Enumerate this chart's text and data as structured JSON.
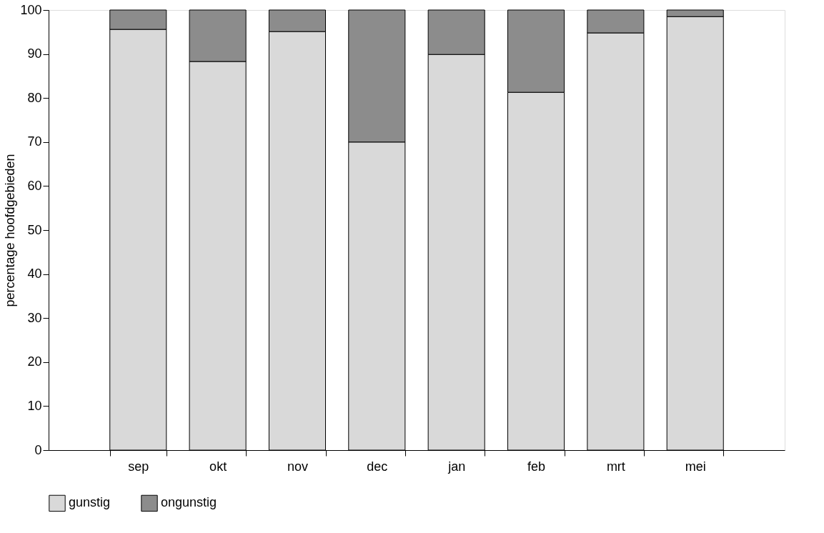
{
  "chart_data": {
    "type": "bar",
    "stacked": true,
    "ylabel": "percentage hoofdgebieden",
    "categories": [
      "sep",
      "okt",
      "nov",
      "dec",
      "jan",
      "feb",
      "mrt",
      "mei"
    ],
    "series": [
      {
        "name": "gunstig",
        "color": "#d9d9d9",
        "values": [
          95.6,
          88.3,
          95.1,
          70.0,
          89.9,
          81.3,
          94.8,
          98.5
        ]
      },
      {
        "name": "ongunstig",
        "color": "#8c8c8c",
        "values": [
          4.4,
          11.7,
          4.9,
          30.0,
          10.1,
          18.7,
          5.2,
          1.5
        ]
      }
    ],
    "ylim": [
      0,
      100
    ],
    "yticks": [
      0,
      10,
      20,
      30,
      40,
      50,
      60,
      70,
      80,
      90,
      100
    ],
    "grid": false,
    "legend": "bottom"
  }
}
